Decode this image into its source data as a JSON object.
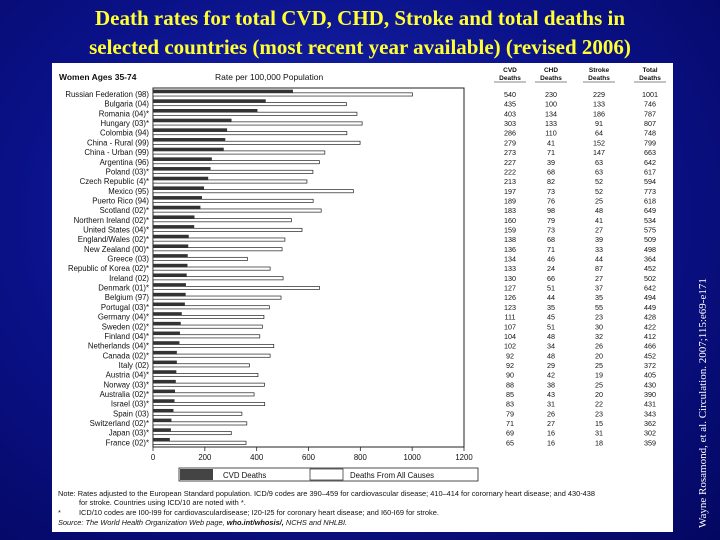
{
  "title": {
    "line1": "Death rates for total CVD, CHD, Stroke and total deaths in",
    "line2": "selected countries (most recent year available) (revised 2006)"
  },
  "credit": "Wayne Rosamond, et al. Circulation. 2007;115:e69-e171",
  "colors": {
    "background": "#0a1188",
    "title": "#ffff33",
    "cvd_bar": "#333333",
    "total_bar": "#ffffff"
  },
  "chart_data": {
    "type": "bar",
    "orientation": "horizontal",
    "panel_label": "Women Ages 35-74",
    "axis_title": "Rate per 100,000 Population",
    "xlim": [
      0,
      1200
    ],
    "x_ticks": [
      "0",
      "200",
      "400",
      "600",
      "800",
      "1000",
      "1200"
    ],
    "legend": {
      "cvd": "CVD Deaths",
      "total": "Deaths From All Causes",
      "placement": "bottom"
    },
    "table_headers": [
      [
        "CVD",
        "Deaths"
      ],
      [
        "CHD",
        "Deaths"
      ],
      [
        "Stroke",
        "Deaths"
      ],
      [
        "Total",
        "Deaths"
      ]
    ],
    "categories": [
      "Russian Federation (98)",
      "Bulgaria (04)",
      "Romania (04)*",
      "Hungary (03)*",
      "Colombia (94)",
      "China - Rural (99)",
      "China - Urban (99)",
      "Argentina (96)",
      "Poland (03)*",
      "Czech Republic (4)*",
      "Mexico (95)",
      "Puerto Rico (94)",
      "Scotland (02)*",
      "Northern Ireland (02)*",
      "United States (04)*",
      "England/Wales (02)*",
      "New Zealand (00)*",
      "Greece (03)",
      "Republic of Korea (02)*",
      "Ireland (02)",
      "Denmark (01)*",
      "Belgium (97)",
      "Portugal (03)*",
      "Germany (04)*",
      "Sweden (02)*",
      "Finland (04)*",
      "Netherlands (04)*",
      "Canada (02)*",
      "Italy (02)",
      "Austria (04)*",
      "Norway (03)*",
      "Australia (02)*",
      "Israel (03)*",
      "Spain (03)",
      "Switzerland (02)*",
      "Japan (03)*",
      "France (02)*"
    ],
    "series": [
      {
        "name": "CVD Deaths",
        "values": [
          540,
          435,
          403,
          303,
          286,
          279,
          273,
          227,
          222,
          213,
          197,
          189,
          183,
          160,
          159,
          138,
          136,
          134,
          133,
          130,
          127,
          126,
          123,
          111,
          107,
          104,
          102,
          92,
          92,
          90,
          88,
          85,
          83,
          79,
          71,
          69,
          65
        ]
      },
      {
        "name": "CHD Deaths",
        "values": [
          230,
          100,
          134,
          133,
          110,
          41,
          71,
          39,
          68,
          82,
          73,
          76,
          98,
          79,
          73,
          68,
          71,
          46,
          24,
          66,
          51,
          44,
          35,
          45,
          51,
          48,
          34,
          48,
          29,
          42,
          38,
          43,
          31,
          26,
          27,
          16,
          16
        ]
      },
      {
        "name": "Stroke Deaths",
        "values": [
          229,
          133,
          186,
          91,
          64,
          152,
          147,
          63,
          63,
          52,
          52,
          25,
          48,
          41,
          27,
          39,
          33,
          44,
          87,
          27,
          37,
          35,
          55,
          23,
          30,
          32,
          26,
          20,
          25,
          19,
          25,
          20,
          22,
          23,
          15,
          31,
          18
        ]
      },
      {
        "name": "Deaths From All Causes",
        "values": [
          1001,
          746,
          787,
          807,
          748,
          799,
          663,
          642,
          617,
          594,
          773,
          618,
          649,
          534,
          575,
          509,
          498,
          364,
          452,
          502,
          642,
          494,
          449,
          428,
          422,
          412,
          466,
          452,
          372,
          405,
          430,
          390,
          431,
          343,
          362,
          302,
          359
        ]
      }
    ]
  },
  "notes": {
    "line1": "Note:  Rates adjusted to the European Standard population. ICD/9 codes are 390–459 for cardiovascular disease; 410–414 for corornary heart disease; and 430-438",
    "line2": "for stroke. Countries using ICD/10 are noted with *.",
    "line3_star": "*",
    "line3": "ICD/10 codes are I00-I99 for cardiovasculardisease; I20-I25 for coronary heart disease; and I60-I69 for stroke.",
    "line4_prefix": "Source:  The World Health Organization Web page,",
    "line4_link": "who.int/whosis/,",
    "line4_suffix": "NCHS and NHLBI."
  }
}
